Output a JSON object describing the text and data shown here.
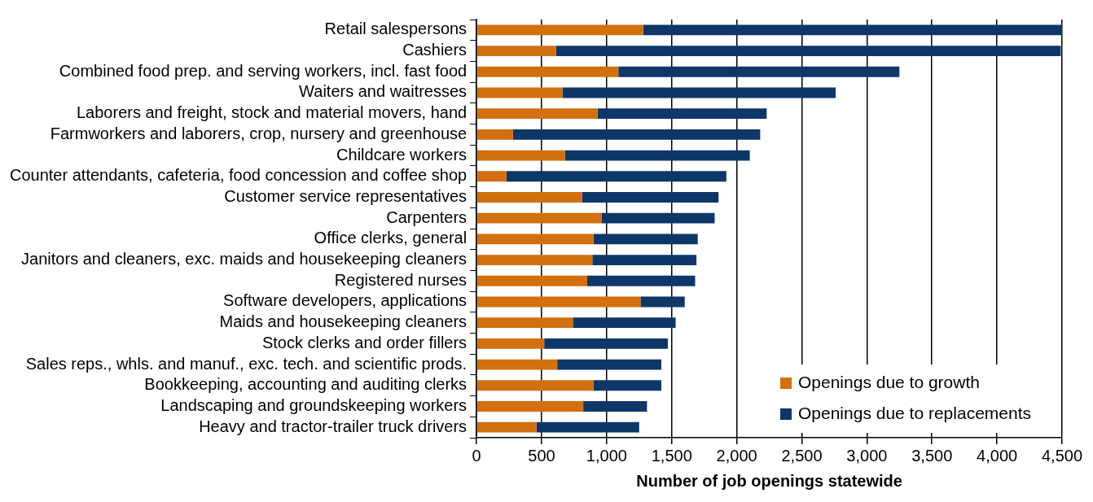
{
  "chart_data": {
    "type": "bar",
    "orientation": "horizontal",
    "stacked": true,
    "xlabel": "Number of job openings statewide",
    "categories": [
      "Retail salespersons",
      "Cashiers",
      "Combined food prep. and serving workers, incl. fast food",
      "Waiters and waitresses",
      "Laborers and freight, stock and material movers, hand",
      "Farmworkers and laborers, crop, nursery and greenhouse",
      "Childcare workers",
      "Counter attendants, cafeteria, food concession and coffee shop",
      "Customer service representatives",
      "Carpenters",
      "Office clerks, general",
      "Janitors and cleaners, exc. maids and housekeeping cleaners",
      "Registered nurses",
      "Software developers, applications",
      "Maids and housekeeping cleaners",
      "Stock clerks and order fillers",
      "Sales reps., whls. and manuf., exc. tech. and scientific prods.",
      "Bookkeeping, accounting and auditing clerks",
      "Landscaping and groundskeeping workers",
      "Heavy and tractor-trailer truck drivers"
    ],
    "series": [
      {
        "name": "Openings due to growth",
        "color": "#d2700f",
        "values": [
          1280,
          610,
          1090,
          660,
          930,
          280,
          680,
          230,
          810,
          960,
          900,
          890,
          850,
          1260,
          740,
          520,
          620,
          900,
          820,
          460
        ]
      },
      {
        "name": "Openings due to replacements",
        "color": "#0e3768",
        "values": [
          3220,
          3880,
          2160,
          2100,
          1300,
          1900,
          1420,
          1690,
          1050,
          870,
          800,
          800,
          830,
          340,
          790,
          950,
          800,
          520,
          490,
          790
        ]
      }
    ],
    "xlim": [
      0,
      4500
    ],
    "xticks": [
      0,
      500,
      {
        "value": 1000,
        "label": "1,000"
      },
      {
        "value": 1500,
        "label": "1,500"
      },
      {
        "value": 2000,
        "label": "2,000"
      },
      {
        "value": 2500,
        "label": "2,500"
      },
      {
        "value": 3000,
        "label": "3,000"
      },
      {
        "value": 3500,
        "label": "3,500"
      },
      {
        "value": 4000,
        "label": "4,000"
      },
      {
        "value": 4500,
        "label": "4,500"
      }
    ],
    "grid": "x",
    "legend": "bottom right"
  }
}
